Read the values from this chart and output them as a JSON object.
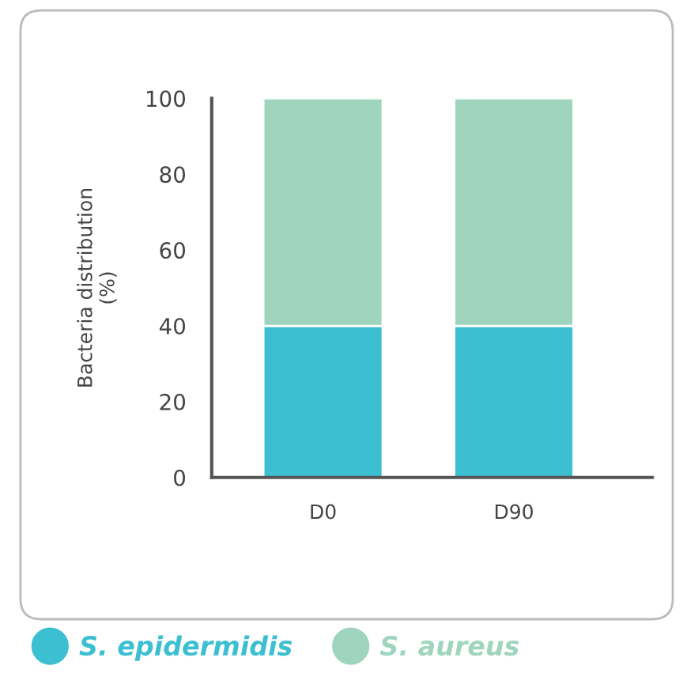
{
  "chart_data": {
    "type": "bar",
    "stacked": true,
    "ylabel": "Bacteria distribution\n(%)",
    "categories": [
      "D0",
      "D90"
    ],
    "series": [
      {
        "name": "S. epidermidis",
        "color": "#3bbfd1",
        "values": [
          40,
          40
        ]
      },
      {
        "name": "S. aureus",
        "color": "#9fd5bf",
        "values": [
          60,
          60
        ]
      }
    ],
    "ylim": [
      0,
      100
    ],
    "yticks": [
      0,
      20,
      40,
      60,
      80,
      100
    ],
    "grid": false,
    "legend": "bottom"
  }
}
